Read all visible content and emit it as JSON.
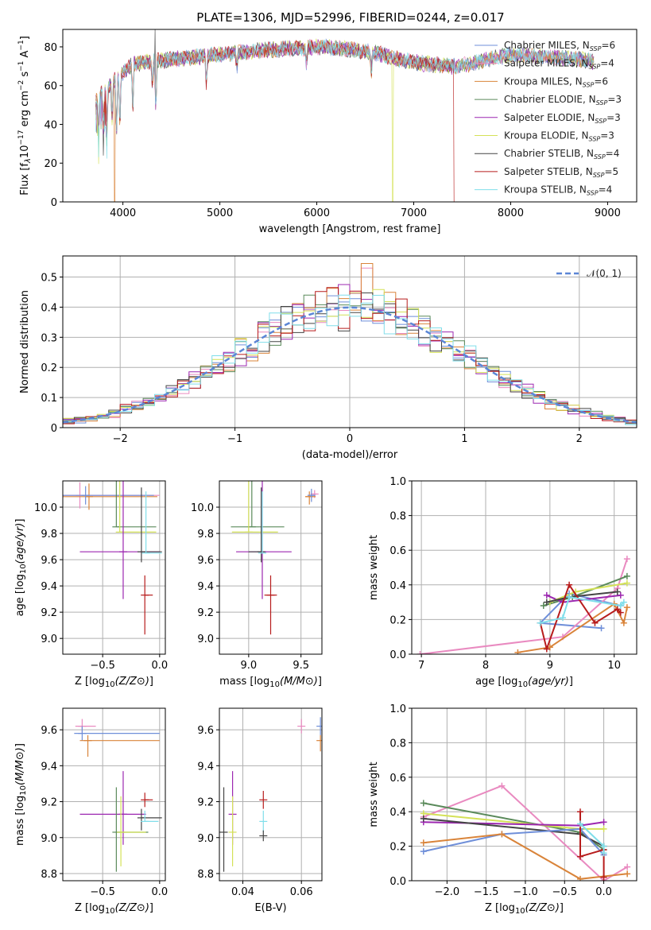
{
  "title": "PLATE=1306, MJD=52996, FIBERID=0244, z=0.017",
  "models": [
    {
      "name": "Chabrier MILES",
      "n": "6",
      "color": "#6f8fd9"
    },
    {
      "name": "Salpeter MILES",
      "n": "4",
      "color": "#e98ac0"
    },
    {
      "name": "Kroupa MILES",
      "n": "6",
      "color": "#d9843a"
    },
    {
      "name": "Chabrier ELODIE",
      "n": "3",
      "color": "#5a8a5a"
    },
    {
      "name": "Salpeter ELODIE",
      "n": "3",
      "color": "#9c27b0"
    },
    {
      "name": "Kroupa ELODIE",
      "n": "3",
      "color": "#d4e157"
    },
    {
      "name": "Chabrier STELIB",
      "n": "4",
      "color": "#444444"
    },
    {
      "name": "Salpeter STELIB",
      "n": "5",
      "color": "#b71c1c"
    },
    {
      "name": "Kroupa STELIB",
      "n": "4",
      "color": "#80deea"
    }
  ],
  "chart_data": [
    {
      "id": "spectrum",
      "type": "line",
      "xlabel": "wavelength [Angstrom, rest frame]",
      "ylabel": "Flux [f_λ 10^-17 erg cm^-2 s^-1 A^-1]",
      "xlim": [
        3380,
        9300
      ],
      "ylim": [
        0,
        89
      ],
      "xticks": [
        4000,
        5000,
        6000,
        7000,
        8000,
        9000
      ],
      "yticks": [
        0,
        20,
        40,
        60,
        80
      ],
      "legend_placement": "top-right",
      "grid": false,
      "continuum": [
        [
          3720,
          52
        ],
        [
          3800,
          57
        ],
        [
          3900,
          62
        ],
        [
          4000,
          67
        ],
        [
          4100,
          71
        ],
        [
          4200,
          72
        ],
        [
          4400,
          73
        ],
        [
          4600,
          74
        ],
        [
          4800,
          75
        ],
        [
          5000,
          76
        ],
        [
          5200,
          77
        ],
        [
          5400,
          78
        ],
        [
          5700,
          79
        ],
        [
          6000,
          80
        ],
        [
          6300,
          79
        ],
        [
          6600,
          77
        ],
        [
          6800,
          74
        ],
        [
          7000,
          72
        ],
        [
          7200,
          71
        ],
        [
          7400,
          70
        ],
        [
          7600,
          71
        ],
        [
          7800,
          74
        ],
        [
          8000,
          76
        ],
        [
          8300,
          75
        ],
        [
          8600,
          74
        ],
        [
          8800,
          73
        ],
        [
          8860,
          72
        ]
      ],
      "dips": [
        [
          3750,
          15
        ],
        [
          3800,
          18
        ],
        [
          3835,
          20
        ],
        [
          3889,
          20
        ],
        [
          3934,
          30
        ],
        [
          3969,
          28
        ],
        [
          4102,
          25
        ],
        [
          4305,
          12
        ],
        [
          4340,
          25
        ],
        [
          4861,
          15
        ],
        [
          5175,
          8
        ],
        [
          5893,
          8
        ],
        [
          6563,
          10
        ]
      ],
      "spikes": [
        [
          3380,
          3720,
          0
        ],
        [
          3910,
          3920,
          0
        ],
        [
          4330,
          4336,
          0
        ],
        [
          6780,
          6790,
          0
        ],
        [
          7420,
          7430,
          0
        ]
      ]
    },
    {
      "id": "residuals",
      "type": "histogram",
      "xlabel": "(data-model)/error",
      "ylabel": "Normed distribution",
      "xlim": [
        -2.5,
        2.5
      ],
      "ylim": [
        0,
        0.57
      ],
      "xticks": [
        -2,
        -1,
        0,
        1,
        2
      ],
      "yticks": [
        0.0,
        0.1,
        0.2,
        0.3,
        0.4,
        0.5
      ],
      "bin_width": 0.1,
      "legend": "𝒩(0, 1)",
      "legend_placement": "top-right",
      "grid": true
    },
    {
      "id": "age-vs-z",
      "type": "scatter",
      "xlabel": "Z [log10(Z/Z⊙)]",
      "ylabel": "age  [log10(age/yr)]",
      "xlim": [
        -0.85,
        0.05
      ],
      "ylim": [
        8.88,
        10.2
      ],
      "xticks": [
        -0.5,
        0.0
      ],
      "yticks": [
        9.0,
        9.2,
        9.4,
        9.6,
        9.8,
        10.0
      ],
      "grid": true,
      "points": [
        {
          "model": 1,
          "x": -0.7,
          "y": 10.09,
          "xerr": [
            0.7,
            0.7
          ],
          "yerr": [
            0.1,
            0.1
          ]
        },
        {
          "model": 2,
          "x": -0.62,
          "y": 10.08,
          "xerr": [
            0.6,
            0.6
          ],
          "yerr": [
            0.1,
            0.1
          ]
        },
        {
          "model": 0,
          "x": -0.65,
          "y": 10.09,
          "xerr": [
            0.6,
            0.6
          ],
          "yerr": [
            0.07,
            0.07
          ]
        },
        {
          "model": 3,
          "x": -0.38,
          "y": 9.85,
          "xerr": [
            0.0,
            0.35
          ],
          "yerr": [
            0.0,
            0.92
          ]
        },
        {
          "model": 5,
          "x": -0.35,
          "y": 9.81,
          "xerr": [
            0.0,
            0.32
          ],
          "yerr": [
            0.0,
            0.87
          ]
        },
        {
          "model": 4,
          "x": -0.32,
          "y": 9.66,
          "xerr": [
            0.38,
            0.32
          ],
          "yerr": [
            0.36,
            0.72
          ]
        },
        {
          "model": 6,
          "x": -0.16,
          "y": 9.66,
          "xerr": [
            0.0,
            0.18
          ],
          "yerr": [
            0.08,
            0.49
          ]
        },
        {
          "model": 8,
          "x": -0.12,
          "y": 9.65,
          "xerr": [
            0.0,
            0.14
          ],
          "yerr": [
            0.0,
            0.47
          ]
        },
        {
          "model": 7,
          "x": -0.13,
          "y": 9.33,
          "xerr": [
            0.0,
            0.07
          ],
          "yerr": [
            0.3,
            0.15
          ]
        }
      ]
    },
    {
      "id": "age-vs-mass",
      "type": "scatter",
      "xlabel": "mass [log10(M/M⊙)]",
      "ylabel": "",
      "xlim": [
        8.72,
        9.7
      ],
      "ylim": [
        8.88,
        10.2
      ],
      "xticks": [
        9.0,
        9.5
      ],
      "yticks": [
        9.0,
        9.2,
        9.4,
        9.6,
        9.8,
        10.0
      ],
      "grid": true,
      "points": [
        {
          "model": 1,
          "x": 9.63,
          "y": 10.1,
          "xerr": [
            0.03,
            0.02
          ],
          "yerr": [
            0.03,
            0.03
          ]
        },
        {
          "model": 2,
          "x": 9.58,
          "y": 10.08,
          "xerr": [
            0.04,
            0.06
          ],
          "yerr": [
            0.06,
            0.04
          ]
        },
        {
          "model": 0,
          "x": 9.6,
          "y": 10.09,
          "xerr": [
            0.03,
            0.03
          ],
          "yerr": [
            0.05,
            0.05
          ]
        },
        {
          "model": 3,
          "x": 9.03,
          "y": 9.85,
          "xerr": [
            0.2,
            0.31
          ],
          "yerr": [
            0.0,
            0.92
          ]
        },
        {
          "model": 5,
          "x": 9.0,
          "y": 9.81,
          "xerr": [
            0.16,
            0.28
          ],
          "yerr": [
            0.0,
            0.87
          ]
        },
        {
          "model": 4,
          "x": 9.13,
          "y": 9.66,
          "xerr": [
            0.25,
            0.28
          ],
          "yerr": [
            0.36,
            0.72
          ]
        },
        {
          "model": 6,
          "x": 9.12,
          "y": 9.66,
          "xerr": [
            0.12,
            0.0
          ],
          "yerr": [
            0.08,
            0.49
          ]
        },
        {
          "model": 8,
          "x": 9.13,
          "y": 9.65,
          "xerr": [
            0.0,
            0.0
          ],
          "yerr": [
            0.0,
            0.47
          ]
        },
        {
          "model": 7,
          "x": 9.21,
          "y": 9.33,
          "xerr": [
            0.06,
            0.06
          ],
          "yerr": [
            0.3,
            0.15
          ]
        }
      ]
    },
    {
      "id": "weight-vs-age",
      "type": "line",
      "xlabel": "age  [log10(age/yr)]",
      "ylabel": "mass weight",
      "xlim": [
        6.85,
        10.35
      ],
      "ylim": [
        0,
        1.0
      ],
      "xticks": [
        7,
        8,
        9,
        10
      ],
      "yticks": [
        0.0,
        0.2,
        0.4,
        0.6,
        0.8,
        1.0
      ],
      "grid": true,
      "series": [
        {
          "model": 0,
          "x": [
            9.8,
            8.85,
            9.3,
            10.1
          ],
          "y": [
            0.15,
            0.18,
            0.35,
            0.28
          ]
        },
        {
          "model": 1,
          "x": [
            6.98,
            9.2,
            10.05,
            10.2
          ],
          "y": [
            0.0,
            0.1,
            0.38,
            0.55
          ]
        },
        {
          "model": 2,
          "x": [
            8.5,
            9.0,
            10.0,
            10.15,
            10.2
          ],
          "y": [
            0.01,
            0.04,
            0.29,
            0.18,
            0.27
          ]
        },
        {
          "model": 3,
          "x": [
            8.9,
            9.35,
            10.2
          ],
          "y": [
            0.28,
            0.33,
            0.45
          ]
        },
        {
          "model": 4,
          "x": [
            8.95,
            9.2,
            10.1
          ],
          "y": [
            0.34,
            0.3,
            0.34
          ]
        },
        {
          "model": 5,
          "x": [
            9.0,
            9.4,
            10.2
          ],
          "y": [
            0.3,
            0.36,
            0.41
          ]
        },
        {
          "model": 6,
          "x": [
            8.95,
            9.3,
            10.05
          ],
          "y": [
            0.3,
            0.33,
            0.36
          ]
        },
        {
          "model": 7,
          "x": [
            8.85,
            8.95,
            9.3,
            9.7,
            10.05,
            10.1
          ],
          "y": [
            0.18,
            0.03,
            0.4,
            0.18,
            0.26,
            0.24
          ]
        },
        {
          "model": 8,
          "x": [
            8.85,
            9.2,
            9.3,
            10.1,
            10.15
          ],
          "y": [
            0.18,
            0.21,
            0.33,
            0.28,
            0.3
          ]
        }
      ]
    },
    {
      "id": "mass-vs-z",
      "type": "scatter",
      "xlabel": "Z [log10(Z/Z⊙)]",
      "ylabel": "mass [log10(M/M⊙)]",
      "xlim": [
        -0.85,
        0.05
      ],
      "ylim": [
        8.76,
        9.72
      ],
      "xticks": [
        -0.5,
        0.0
      ],
      "yticks": [
        8.8,
        9.0,
        9.2,
        9.4,
        9.6
      ],
      "grid": true,
      "points": [
        {
          "model": 1,
          "x": -0.68,
          "y": 9.62,
          "xerr": [
            0.06,
            0.12
          ],
          "yerr": [
            0.04,
            0.04
          ]
        },
        {
          "model": 0,
          "x": -0.68,
          "y": 9.58,
          "xerr": [
            0.07,
            0.68
          ],
          "yerr": [
            0.04,
            0.04
          ]
        },
        {
          "model": 2,
          "x": -0.63,
          "y": 9.54,
          "xerr": [
            0.07,
            0.63
          ],
          "yerr": [
            0.09,
            0.03
          ]
        },
        {
          "model": 4,
          "x": -0.32,
          "y": 9.13,
          "xerr": [
            0.38,
            0.2
          ],
          "yerr": [
            0.17,
            0.24
          ]
        },
        {
          "model": 3,
          "x": -0.38,
          "y": 9.03,
          "xerr": [
            0.0,
            0.28
          ],
          "yerr": [
            0.22,
            0.25
          ]
        },
        {
          "model": 5,
          "x": -0.34,
          "y": 9.03,
          "xerr": [
            0.0,
            0.22
          ],
          "yerr": [
            0.19,
            0.2
          ]
        },
        {
          "model": 6,
          "x": -0.16,
          "y": 9.11,
          "xerr": [
            0.0,
            0.18
          ],
          "yerr": [
            0.07,
            0.05
          ]
        },
        {
          "model": 8,
          "x": -0.13,
          "y": 9.09,
          "xerr": [
            0.0,
            0.12
          ],
          "yerr": [
            0.0,
            0.06
          ]
        },
        {
          "model": 7,
          "x": -0.13,
          "y": 9.21,
          "xerr": [
            0.0,
            0.07
          ],
          "yerr": [
            0.04,
            0.04
          ]
        }
      ]
    },
    {
      "id": "mass-vs-ebv",
      "type": "scatter",
      "xlabel": "E(B-V)",
      "ylabel": "",
      "xlim": [
        0.032,
        0.067
      ],
      "ylim": [
        8.76,
        9.72
      ],
      "xticks": [
        0.04,
        0.06
      ],
      "yticks": [
        8.8,
        9.0,
        9.2,
        9.4,
        9.6
      ],
      "grid": true,
      "points": [
        {
          "model": 6,
          "x": 0.0335,
          "y": 9.03,
          "yerr": [
            0.22,
            0.25
          ]
        },
        {
          "model": 4,
          "x": 0.0365,
          "y": 9.13,
          "yerr": [
            0.17,
            0.24
          ]
        },
        {
          "model": 5,
          "x": 0.0365,
          "y": 9.03,
          "yerr": [
            0.19,
            0.2
          ]
        },
        {
          "model": 8,
          "x": 0.047,
          "y": 9.09,
          "yerr": [
            0.06,
            0.06
          ]
        },
        {
          "model": 7,
          "x": 0.047,
          "y": 9.21,
          "yerr": [
            0.05,
            0.05
          ]
        },
        {
          "model": 6,
          "x": 0.047,
          "y": 9.01,
          "yerr": [
            0.03,
            0.03
          ]
        },
        {
          "model": 1,
          "x": 0.06,
          "y": 9.62,
          "yerr": [
            0.04,
            0.04
          ]
        },
        {
          "model": 0,
          "x": 0.0665,
          "y": 9.62,
          "yerr": [
            0.05,
            0.05
          ]
        },
        {
          "model": 2,
          "x": 0.0665,
          "y": 9.54,
          "yerr": [
            0.06,
            0.03
          ]
        }
      ]
    },
    {
      "id": "weight-vs-z",
      "type": "line",
      "xlabel": "Z [log10(Z/Z⊙)]",
      "ylabel": "mass weight",
      "xlim": [
        -2.45,
        0.42
      ],
      "ylim": [
        0,
        1.0
      ],
      "xticks": [
        -2.0,
        -1.5,
        -1.0,
        -0.5,
        0.0
      ],
      "yticks": [
        0.0,
        0.2,
        0.4,
        0.6,
        0.8,
        1.0
      ],
      "grid": true,
      "series": [
        {
          "model": 1,
          "x": [
            -2.3,
            -1.3,
            0.0,
            0.3
          ],
          "y": [
            0.37,
            0.55,
            0.0,
            0.08
          ]
        },
        {
          "model": 3,
          "x": [
            -2.3,
            -0.3,
            0.0
          ],
          "y": [
            0.45,
            0.28,
            0.18
          ]
        },
        {
          "model": 5,
          "x": [
            -2.3,
            -0.3,
            0.0
          ],
          "y": [
            0.39,
            0.3,
            0.3
          ]
        },
        {
          "model": 4,
          "x": [
            -2.3,
            -0.3,
            0.0
          ],
          "y": [
            0.34,
            0.32,
            0.34
          ]
        },
        {
          "model": 6,
          "x": [
            -2.3,
            -0.3,
            0.0
          ],
          "y": [
            0.36,
            0.27,
            0.2
          ]
        },
        {
          "model": 0,
          "x": [
            -2.3,
            -1.3,
            -0.3,
            0.0
          ],
          "y": [
            0.17,
            0.27,
            0.3,
            0.15
          ]
        },
        {
          "model": 2,
          "x": [
            -2.3,
            -1.3,
            -0.3,
            0.3
          ],
          "y": [
            0.22,
            0.27,
            0.01,
            0.04
          ]
        },
        {
          "model": 7,
          "x": [
            -0.3,
            -0.3,
            0.0,
            0.0
          ],
          "y": [
            0.4,
            0.14,
            0.18,
            0.02
          ]
        },
        {
          "model": 8,
          "x": [
            -0.3,
            0.0,
            0.0
          ],
          "y": [
            0.33,
            0.2,
            0.16
          ]
        }
      ]
    }
  ],
  "text": {
    "spectrum_ylabel": "Flux [f",
    "spectrum_ylabel_rest": "10",
    "spectrum_ylabel_exp": "−17",
    "spectrum_ylabel_unit": " erg cm",
    "spectrum_ylabel_unit_exp": "−2",
    "spectrum_ylabel_unit2": " s",
    "spectrum_ylabel_unit2_exp": "−1",
    "spectrum_ylabel_unit3": " A",
    "spectrum_ylabel_unit3_exp": "−1",
    "spectrum_ylabel_end": "]"
  }
}
